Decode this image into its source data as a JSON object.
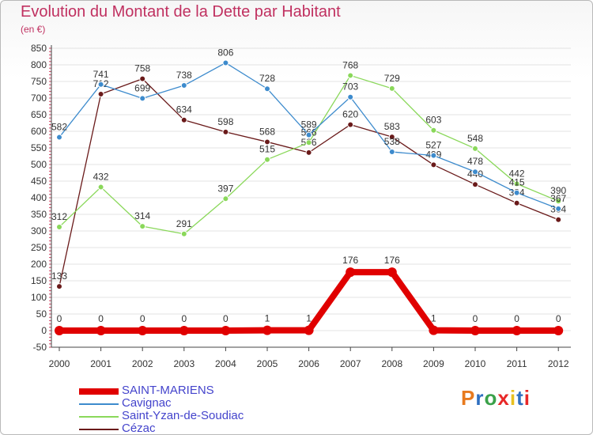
{
  "header": {
    "title": "Evolution du Montant de la Dette par Habitant",
    "unit": "(en €)"
  },
  "logo": {
    "text": "Proxiti",
    "letter_colors": [
      "#e87a1e",
      "#2f6fc0",
      "#3aa14a",
      "#e82828",
      "#e8c020",
      "#2f6fc0",
      "#e82828"
    ]
  },
  "chart_data": {
    "type": "line",
    "title": "Evolution du Montant de la Dette par Habitant",
    "ylabel": "(en €)",
    "xlabel": "",
    "ylim": [
      -50,
      850
    ],
    "yticks": [
      -50,
      0,
      50,
      100,
      150,
      200,
      250,
      300,
      350,
      400,
      450,
      500,
      550,
      600,
      650,
      700,
      750,
      800,
      850
    ],
    "x": [
      "2000",
      "2001",
      "2002",
      "2003",
      "2004",
      "2005",
      "2006",
      "2007",
      "2008",
      "2009",
      "2010",
      "2011",
      "2012"
    ],
    "grid": "horizontal",
    "legend": "bottom-left",
    "series": [
      {
        "name": "SAINT-MARIENS",
        "color": "#e00000",
        "values": [
          0,
          0,
          0,
          0,
          0,
          1,
          1,
          176,
          176,
          1,
          0,
          0,
          0
        ]
      },
      {
        "name": "Cavignac",
        "color": "#3d8bcd",
        "values": [
          582,
          741,
          699,
          738,
          806,
          728,
          589,
          703,
          538,
          527,
          478,
          415,
          367
        ]
      },
      {
        "name": "Saint-Yzan-de-Soudiac",
        "color": "#8ad85a",
        "values": [
          312,
          432,
          314,
          291,
          397,
          515,
          566,
          768,
          729,
          603,
          548,
          442,
          390
        ]
      },
      {
        "name": "Cézac",
        "color": "#6a1a1a",
        "values": [
          133,
          712,
          758,
          634,
          598,
          568,
          536,
          620,
          583,
          499,
          440,
          384,
          334
        ]
      }
    ]
  }
}
